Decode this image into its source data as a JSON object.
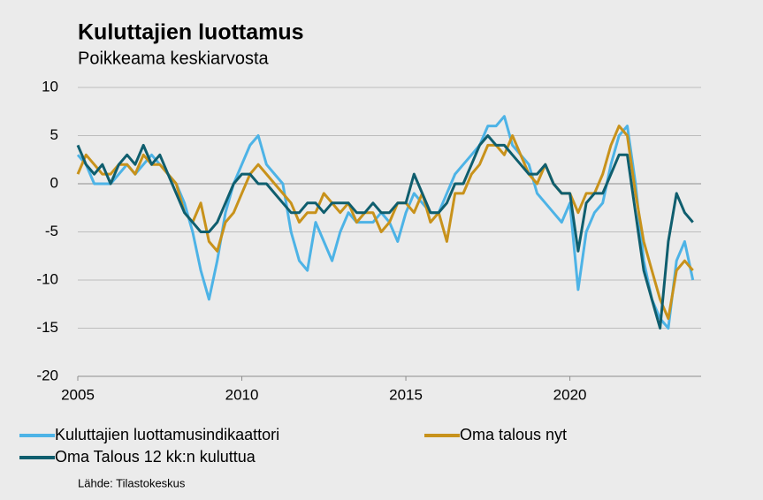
{
  "chart_data": {
    "type": "line",
    "title": "Kuluttajien luottamus",
    "subtitle": "Poikkeama keskiarvosta",
    "source": "Lähde: Tilastokeskus",
    "x": [
      2005,
      2005.25,
      2005.5,
      2005.75,
      2006,
      2006.25,
      2006.5,
      2006.75,
      2007,
      2007.25,
      2007.5,
      2007.75,
      2008,
      2008.25,
      2008.5,
      2008.75,
      2009,
      2009.25,
      2009.5,
      2009.75,
      2010,
      2010.25,
      2010.5,
      2010.75,
      2011,
      2011.25,
      2011.5,
      2011.75,
      2012,
      2012.25,
      2012.5,
      2012.75,
      2013,
      2013.25,
      2013.5,
      2013.75,
      2014,
      2014.25,
      2014.5,
      2014.75,
      2015,
      2015.25,
      2015.5,
      2015.75,
      2016,
      2016.25,
      2016.5,
      2016.75,
      2017,
      2017.25,
      2017.5,
      2017.75,
      2018,
      2018.25,
      2018.5,
      2018.75,
      2019,
      2019.25,
      2019.5,
      2019.75,
      2020,
      2020.25,
      2020.5,
      2020.75,
      2021,
      2021.25,
      2021.5,
      2021.75,
      2022,
      2022.25,
      2022.5,
      2022.75,
      2023,
      2023.25,
      2023.5,
      2023.75
    ],
    "series": [
      {
        "name": "Kuluttajien luottamusindikaattori",
        "color": "#4db3e6",
        "values": [
          3,
          2,
          0,
          0,
          0,
          1,
          2,
          1,
          2,
          3,
          2,
          1,
          0,
          -2,
          -5,
          -9,
          -12,
          -8,
          -3,
          0,
          2,
          4,
          5,
          2,
          1,
          0,
          -5,
          -8,
          -9,
          -4,
          -6,
          -8,
          -5,
          -3,
          -4,
          -4,
          -4,
          -3,
          -4,
          -6,
          -3,
          -1,
          -2,
          -3,
          -3,
          -1,
          1,
          2,
          3,
          4,
          6,
          6,
          7,
          4,
          3,
          2,
          -1,
          -2,
          -3,
          -4,
          -2,
          -11,
          -5,
          -3,
          -2,
          2,
          5,
          6,
          0,
          -8,
          -12,
          -14,
          -15,
          -8,
          -6,
          -10
        ]
      },
      {
        "name": "Oma talous nyt",
        "color": "#c8921b",
        "values": [
          1,
          3,
          2,
          1,
          1,
          2,
          2,
          1,
          3,
          2,
          2,
          1,
          0,
          -3,
          -4,
          -2,
          -6,
          -7,
          -4,
          -3,
          -1,
          1,
          2,
          1,
          0,
          -1,
          -2,
          -4,
          -3,
          -3,
          -1,
          -2,
          -3,
          -2,
          -4,
          -3,
          -3,
          -5,
          -4,
          -2,
          -2,
          -3,
          -1,
          -4,
          -3,
          -6,
          -1,
          -1,
          1,
          2,
          4,
          4,
          3,
          5,
          3,
          1,
          0,
          2,
          0,
          -1,
          -1,
          -3,
          -1,
          -1,
          1,
          4,
          6,
          5,
          -1,
          -6,
          -9,
          -12,
          -14,
          -9,
          -8,
          -9
        ]
      },
      {
        "name": "Oma Talous 12 kk:n kuluttua",
        "color": "#0f5e6e",
        "values": [
          4,
          2,
          1,
          2,
          0,
          2,
          3,
          2,
          4,
          2,
          3,
          1,
          -1,
          -3,
          -4,
          -5,
          -5,
          -4,
          -2,
          0,
          1,
          1,
          0,
          0,
          -1,
          -2,
          -3,
          -3,
          -2,
          -2,
          -3,
          -2,
          -2,
          -2,
          -3,
          -3,
          -2,
          -3,
          -3,
          -2,
          -2,
          1,
          -1,
          -3,
          -3,
          -2,
          0,
          0,
          2,
          4,
          5,
          4,
          4,
          3,
          2,
          1,
          1,
          2,
          0,
          -1,
          -1,
          -7,
          -2,
          -1,
          -1,
          1,
          3,
          3,
          -3,
          -9,
          -12,
          -15,
          -6,
          -1,
          -3,
          -4
        ]
      }
    ],
    "xlim": [
      2005,
      2024
    ],
    "xticks": [
      2005,
      2010,
      2015,
      2020
    ],
    "ylim": [
      -20,
      10
    ],
    "yticks": [
      -20,
      -15,
      -10,
      -5,
      0,
      5,
      10
    ],
    "grid": true
  }
}
